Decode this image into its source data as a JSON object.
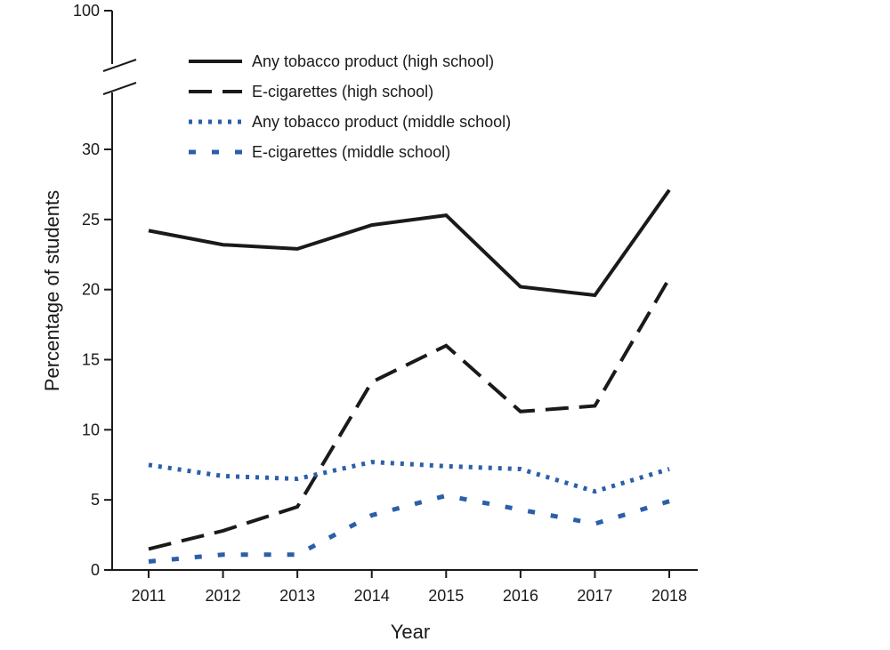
{
  "chart_data": {
    "type": "line",
    "title": "",
    "xlabel": "Year",
    "ylabel": "Percentage of students",
    "x": [
      2011,
      2012,
      2013,
      2014,
      2015,
      2016,
      2017,
      2018
    ],
    "x_tick_labels": [
      "2011",
      "2012",
      "2013",
      "2014",
      "2015",
      "2016",
      "2017",
      "2018"
    ],
    "y_ticks": [
      0,
      5,
      10,
      15,
      20,
      25,
      30
    ],
    "y_tick_labels": [
      "0",
      "5",
      "10",
      "15",
      "20",
      "25",
      "30"
    ],
    "y_break_top_label": "100",
    "ylim": [
      0,
      100
    ],
    "axis_break": "between 30 and 100",
    "legend_position": "top",
    "series": [
      {
        "name": "Any tobacco product (high school)",
        "color": "#1a1a1a",
        "style": "solid",
        "values": [
          24.2,
          23.2,
          22.9,
          24.6,
          25.3,
          20.2,
          19.6,
          27.1
        ]
      },
      {
        "name": "E-cigarettes (high school)",
        "color": "#1a1a1a",
        "style": "dashed",
        "values": [
          1.5,
          2.8,
          4.5,
          13.4,
          16.0,
          11.3,
          11.7,
          20.8
        ]
      },
      {
        "name": "Any tobacco product (middle school)",
        "color": "#2b5fa8",
        "style": "dotted",
        "values": [
          7.5,
          6.7,
          6.5,
          7.7,
          7.4,
          7.2,
          5.6,
          7.2
        ]
      },
      {
        "name": "E-cigarettes (middle school)",
        "color": "#2b5fa8",
        "style": "dashed-square",
        "values": [
          0.6,
          1.1,
          1.1,
          3.9,
          5.3,
          4.3,
          3.3,
          4.9
        ]
      }
    ]
  }
}
